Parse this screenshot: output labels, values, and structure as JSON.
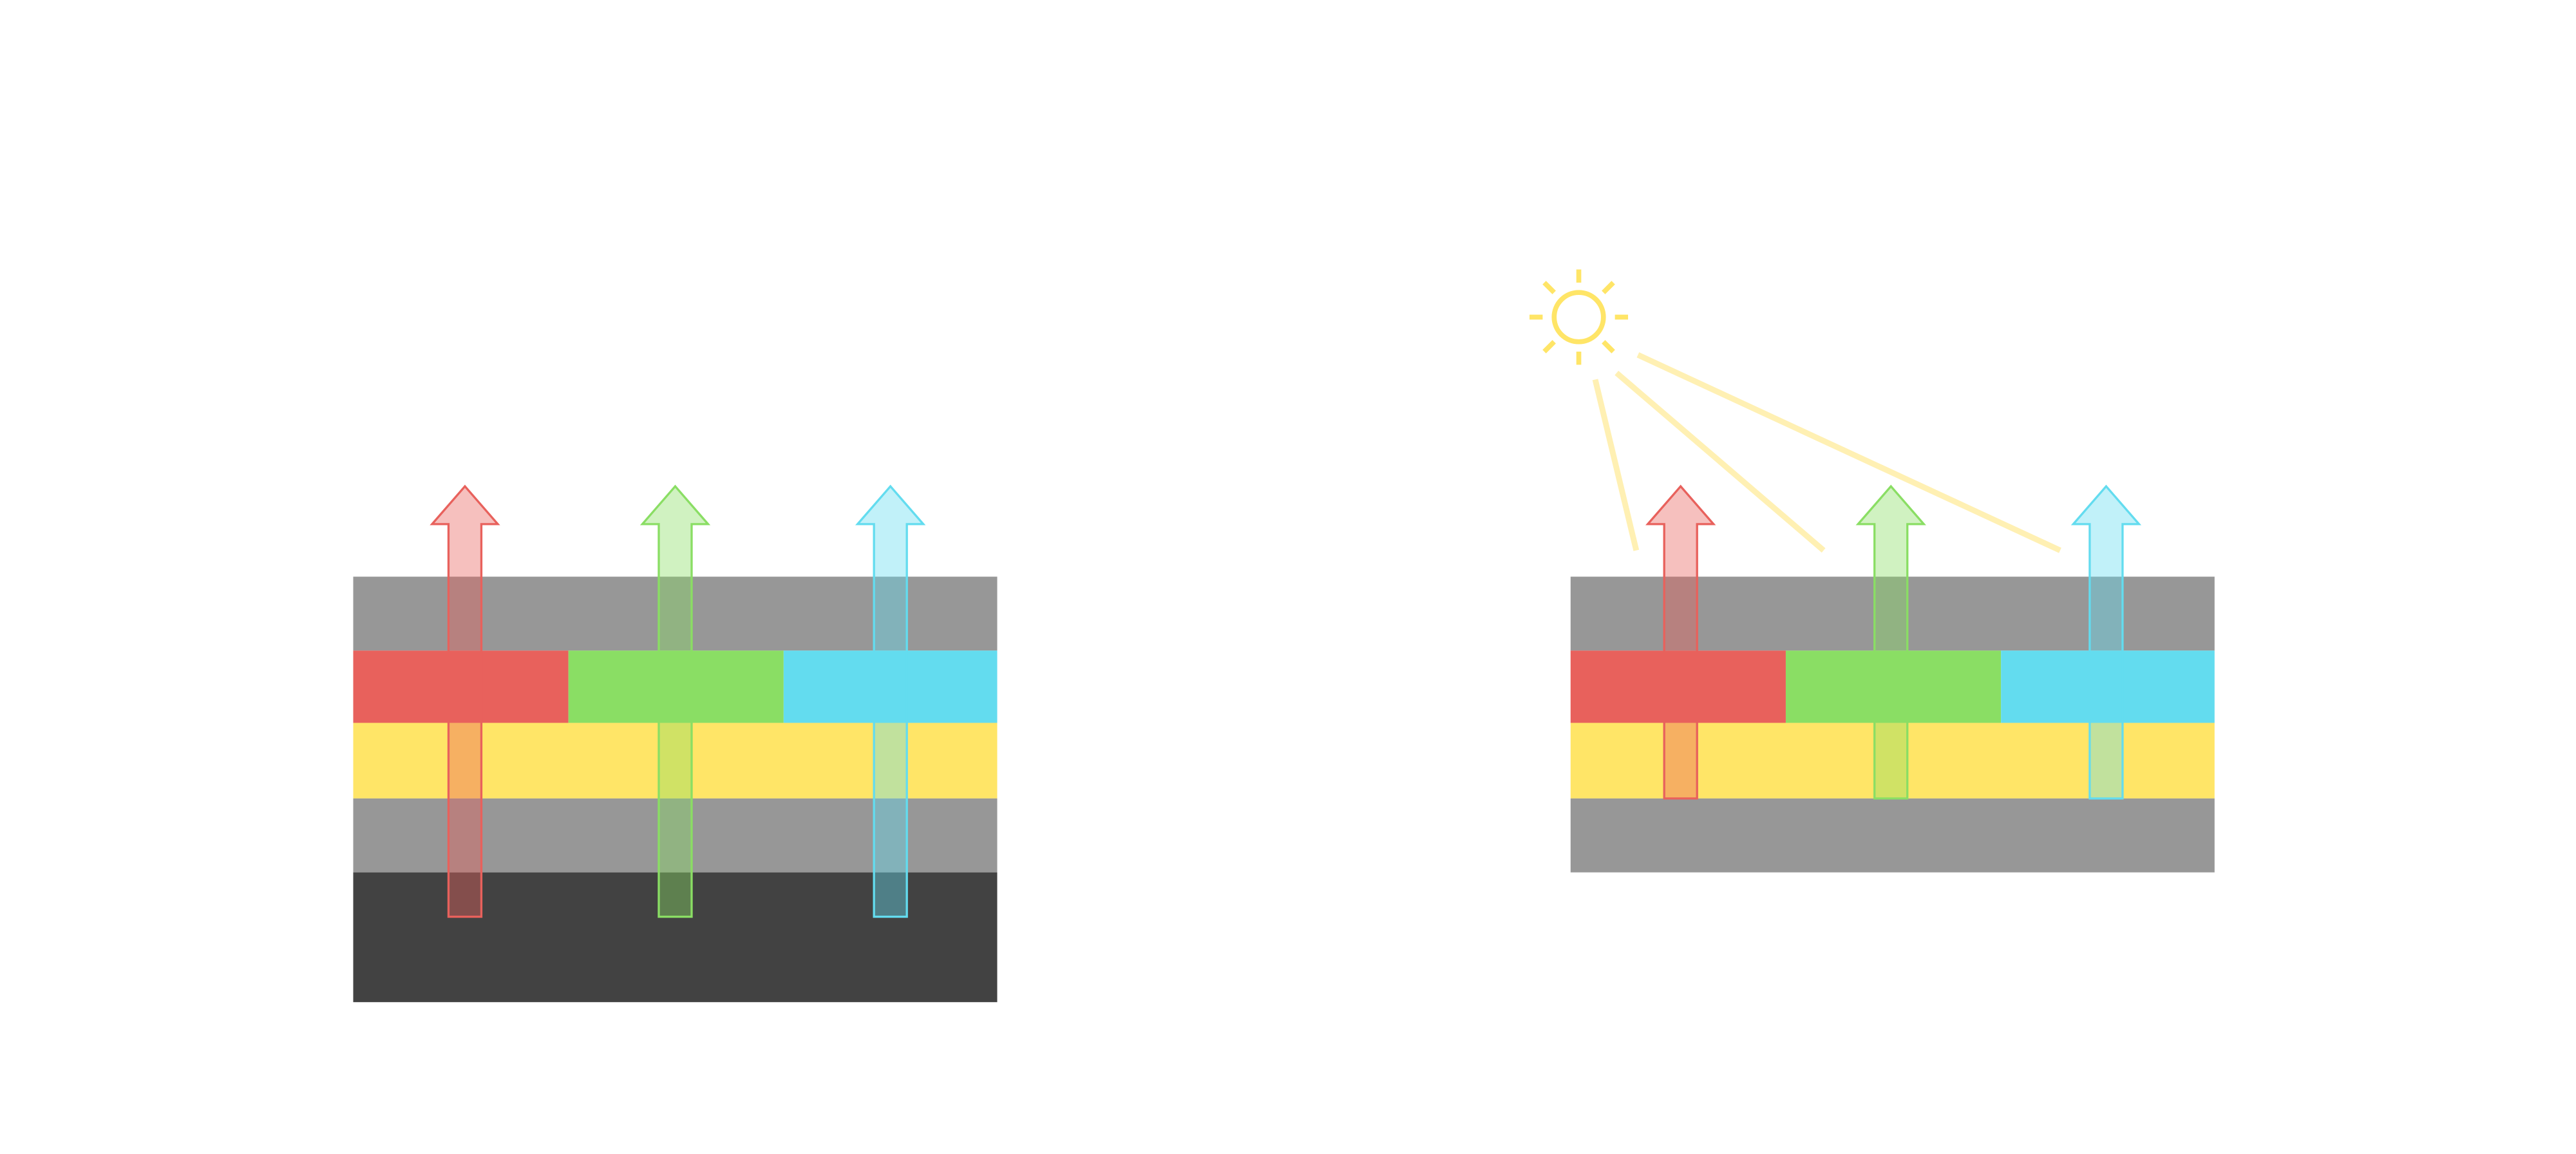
{
  "colors": {
    "background": "#FFFFFF",
    "layer_gray": "#979797",
    "layer_dark": "#424242",
    "filter_red": "#E8615C",
    "filter_green": "#8ADE64",
    "filter_cyan": "#63DCEF",
    "layer_yellow": "#FFE567",
    "sun": "#FFE567",
    "light_ray": "#FFF0B3"
  },
  "diagrams": [
    {
      "id": "left",
      "layers": [
        "gray",
        "color-filters",
        "yellow",
        "gray",
        "dark"
      ],
      "arrows": [
        "red",
        "green",
        "cyan"
      ],
      "illumination": "none"
    },
    {
      "id": "right",
      "layers": [
        "gray",
        "color-filters",
        "yellow",
        "gray"
      ],
      "arrows": [
        "red",
        "green",
        "cyan"
      ],
      "illumination": "sun-icon"
    }
  ]
}
